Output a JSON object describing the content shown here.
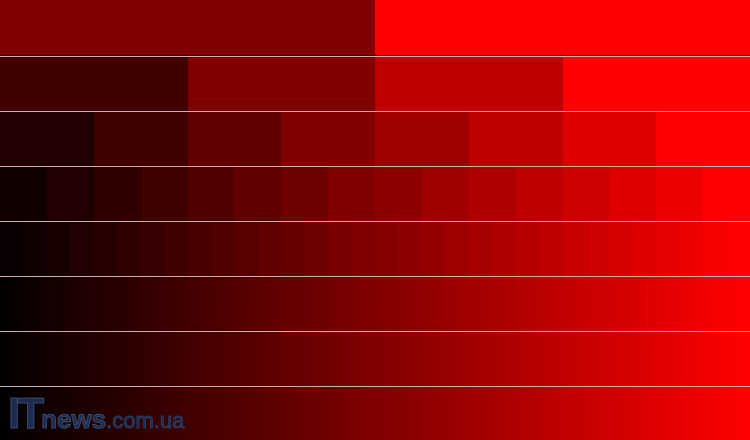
{
  "gradient_test": {
    "base_color": "#ff0000",
    "start_color": "#000000",
    "steps_per_row": [
      2,
      4,
      8,
      16,
      32,
      64,
      128,
      256
    ],
    "separator_color": "#c8b0b0"
  },
  "watermark": {
    "part1": "IT",
    "part2": "news",
    "part3": ".com.ua",
    "color": "#1c2a4e"
  }
}
